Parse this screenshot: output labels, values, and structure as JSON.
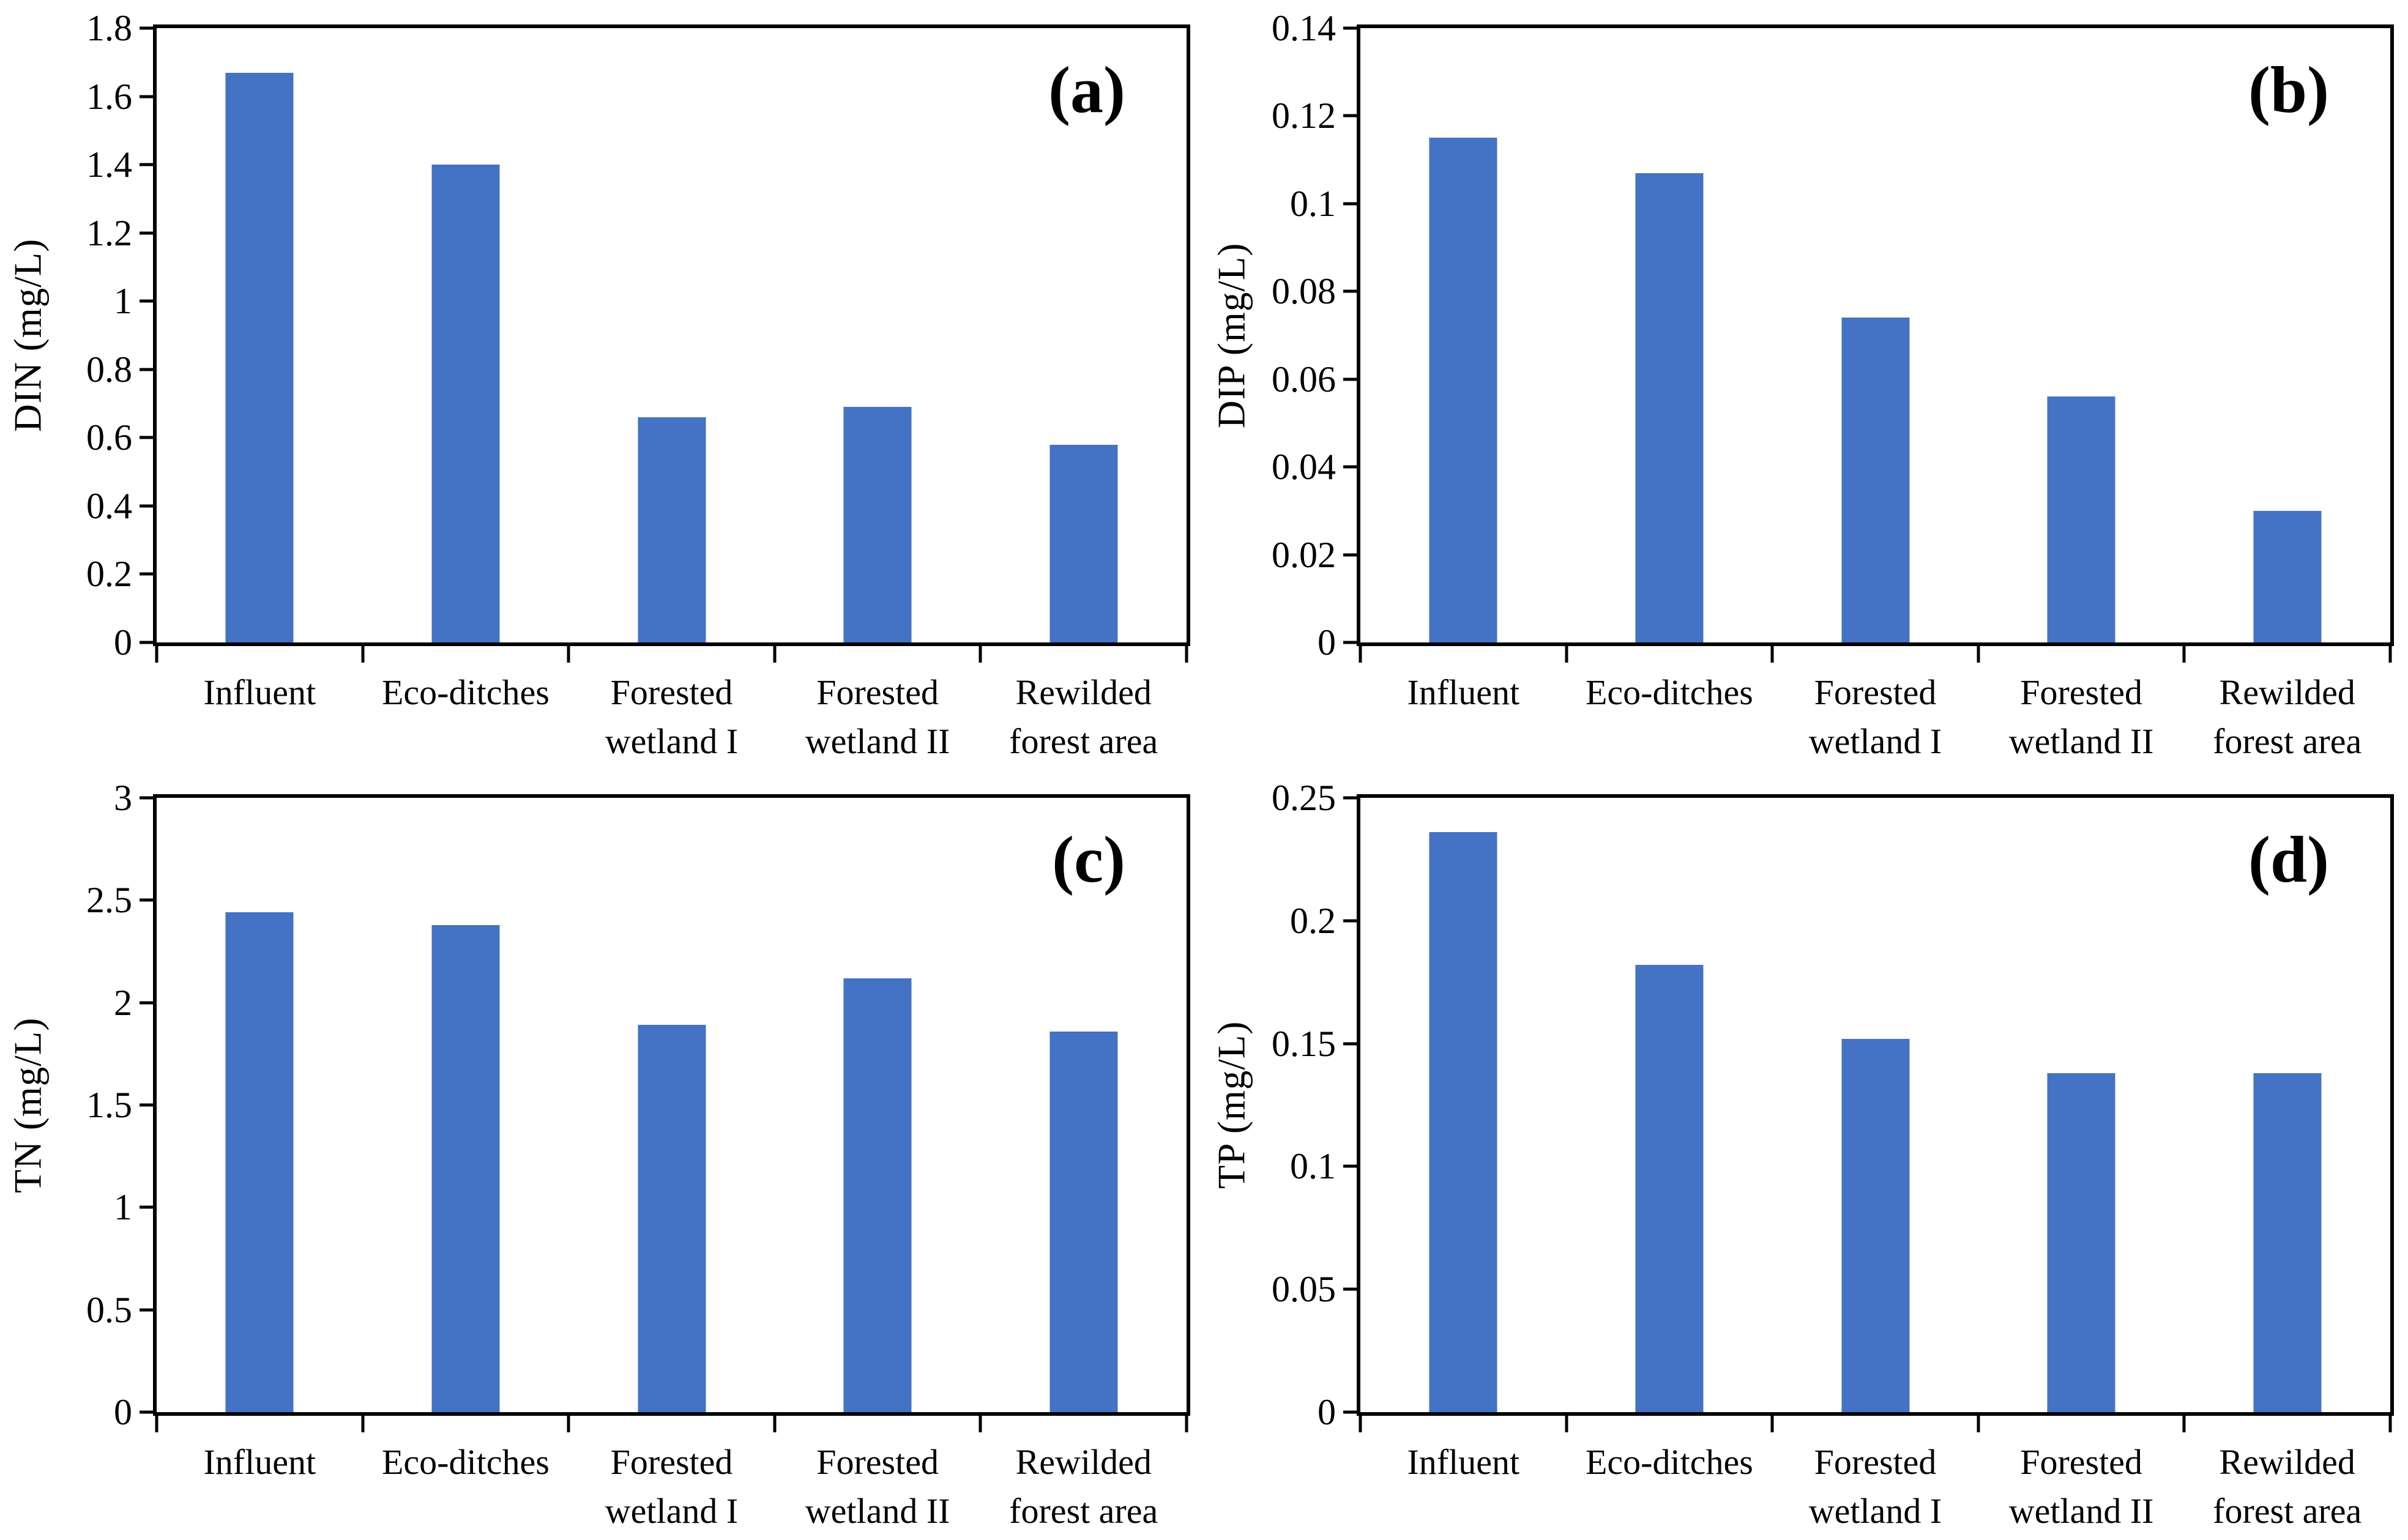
{
  "figure": {
    "layout": "2x2-grid",
    "background": "#ffffff",
    "bar_color": "#4472C4",
    "axis_color": "#000000",
    "categories": [
      "Influent",
      "Eco-ditches",
      "Forested wetland I",
      "Forested wetland II",
      "Rewilded forest area"
    ],
    "category_label_lines": [
      [
        "Influent"
      ],
      [
        "Eco-ditches"
      ],
      [
        "Forested",
        "wetland I"
      ],
      [
        "Forested",
        "wetland II"
      ],
      [
        "Rewilded",
        "forest area"
      ]
    ]
  },
  "chart_data": [
    {
      "type": "bar",
      "panel_label": "(a)",
      "ylabel": "DIN (mg/L)",
      "xlabel": "",
      "ylim": [
        0,
        1.8
      ],
      "grid": false,
      "legend_position": "none",
      "categories": [
        "Influent",
        "Eco-ditches",
        "Forested wetland I",
        "Forested wetland II",
        "Rewilded forest area"
      ],
      "values": [
        1.67,
        1.4,
        0.66,
        0.69,
        0.58
      ],
      "yticks": [
        {
          "v": 0,
          "label": "0"
        },
        {
          "v": 0.2,
          "label": "0.2"
        },
        {
          "v": 0.4,
          "label": "0.4"
        },
        {
          "v": 0.6,
          "label": "0.6"
        },
        {
          "v": 0.8,
          "label": "0.8"
        },
        {
          "v": 1,
          "label": "1"
        },
        {
          "v": 1.2,
          "label": "1.2"
        },
        {
          "v": 1.4,
          "label": "1.4"
        },
        {
          "v": 1.6,
          "label": "1.6"
        },
        {
          "v": 1.8,
          "label": "1.8"
        }
      ]
    },
    {
      "type": "bar",
      "panel_label": "(b)",
      "ylabel": "DIP (mg/L)",
      "xlabel": "",
      "ylim": [
        0,
        0.14
      ],
      "grid": false,
      "legend_position": "none",
      "categories": [
        "Influent",
        "Eco-ditches",
        "Forested wetland I",
        "Forested wetland II",
        "Rewilded forest area"
      ],
      "values": [
        0.115,
        0.107,
        0.074,
        0.056,
        0.03
      ],
      "yticks": [
        {
          "v": 0,
          "label": "0"
        },
        {
          "v": 0.02,
          "label": "0.02"
        },
        {
          "v": 0.04,
          "label": "0.04"
        },
        {
          "v": 0.06,
          "label": "0.06"
        },
        {
          "v": 0.08,
          "label": "0.08"
        },
        {
          "v": 0.1,
          "label": "0.1"
        },
        {
          "v": 0.12,
          "label": "0.12"
        },
        {
          "v": 0.14,
          "label": "0.14"
        }
      ]
    },
    {
      "type": "bar",
      "panel_label": "(c)",
      "ylabel": "TN (mg/L)",
      "xlabel": "",
      "ylim": [
        0,
        3
      ],
      "grid": false,
      "legend_position": "none",
      "categories": [
        "Influent",
        "Eco-ditches",
        "Forested wetland I",
        "Forested wetland II",
        "Rewilded forest area"
      ],
      "values": [
        2.44,
        2.38,
        1.89,
        2.12,
        1.86
      ],
      "yticks": [
        {
          "v": 0,
          "label": "0"
        },
        {
          "v": 0.5,
          "label": "0.5"
        },
        {
          "v": 1,
          "label": "1"
        },
        {
          "v": 1.5,
          "label": "1.5"
        },
        {
          "v": 2,
          "label": "2"
        },
        {
          "v": 2.5,
          "label": "2.5"
        },
        {
          "v": 3,
          "label": "3"
        }
      ]
    },
    {
      "type": "bar",
      "panel_label": "(d)",
      "ylabel": "TP (mg/L)",
      "xlabel": "",
      "ylim": [
        0,
        0.25
      ],
      "grid": false,
      "legend_position": "none",
      "categories": [
        "Influent",
        "Eco-ditches",
        "Forested wetland I",
        "Forested wetland II",
        "Rewilded forest area"
      ],
      "values": [
        0.236,
        0.182,
        0.152,
        0.138,
        0.138
      ],
      "yticks": [
        {
          "v": 0,
          "label": "0"
        },
        {
          "v": 0.05,
          "label": "0.05"
        },
        {
          "v": 0.1,
          "label": "0.1"
        },
        {
          "v": 0.15,
          "label": "0.15"
        },
        {
          "v": 0.2,
          "label": "0.2"
        },
        {
          "v": 0.25,
          "label": "0.25"
        }
      ]
    }
  ]
}
